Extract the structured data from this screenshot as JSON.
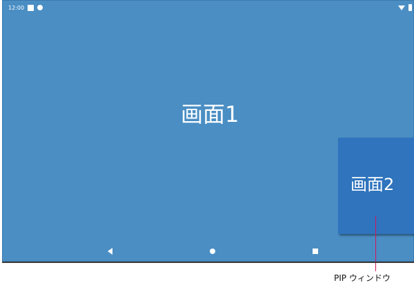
{
  "status_bar": {
    "time": "12:00",
    "icons": [
      "notification-square-icon",
      "notification-dot-icon",
      "wifi-icon",
      "battery-icon"
    ]
  },
  "main_screen": {
    "label": "画面1"
  },
  "pip_window": {
    "label": "画面2"
  },
  "navigation_bar": {
    "icons": [
      "back-icon",
      "home-icon",
      "recents-icon"
    ]
  },
  "annotation": {
    "caption": "PIP ウィンドウ"
  },
  "colors": {
    "screen_background": "#4a8ec4",
    "pip_background": "#2f74bd",
    "pointer_line": "#d4145a"
  }
}
